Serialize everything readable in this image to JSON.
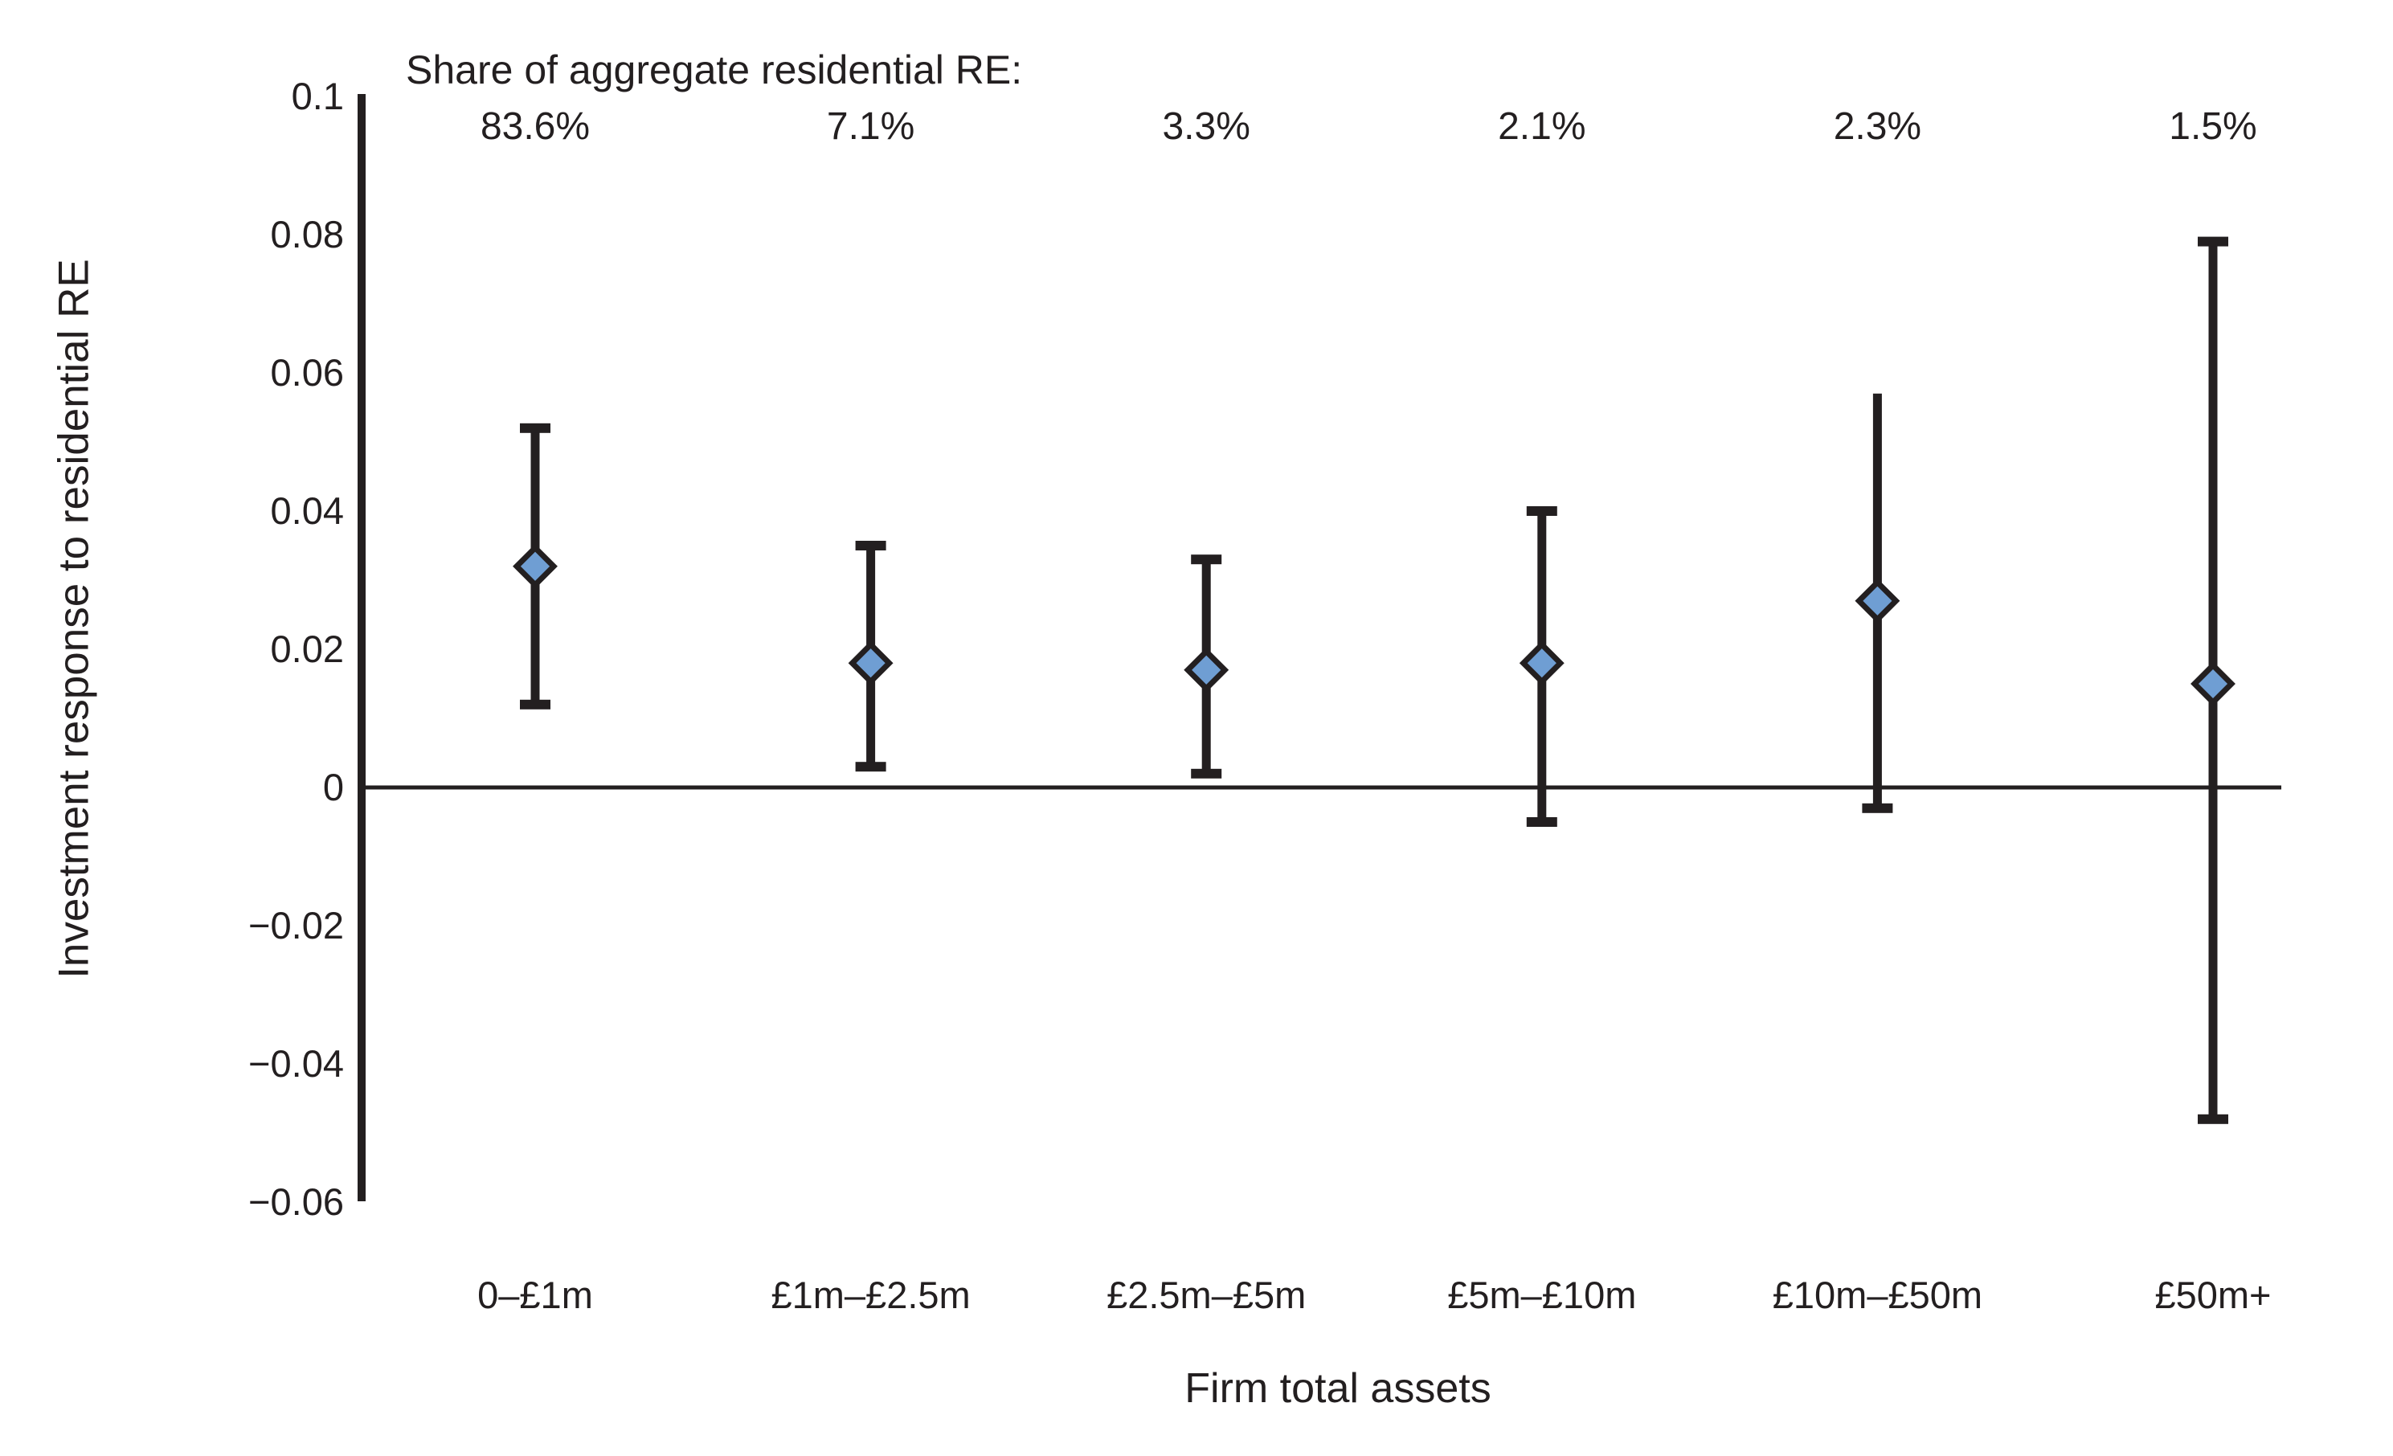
{
  "chart_data": {
    "type": "scatter",
    "subtype": "error-bar coefficient plot",
    "title": "Share of aggregate residential RE:",
    "xlabel": "Firm total assets",
    "ylabel": "Investment response to residential RE",
    "categories": [
      "0–£1m",
      "£1m–£2.5m",
      "£2.5m–£5m",
      "£5m–£10m",
      "£10m–£50m",
      "£50m+"
    ],
    "share_of_aggregate_labels": [
      "83.6%",
      "7.1%",
      "3.3%",
      "2.1%",
      "2.3%",
      "1.5%"
    ],
    "points": [
      {
        "category": "0–£1m",
        "share": "83.6%",
        "value": 0.032,
        "ci_low": 0.012,
        "ci_high": 0.052,
        "top_cap": true
      },
      {
        "category": "£1m–£2.5m",
        "share": "7.1%",
        "value": 0.018,
        "ci_low": 0.003,
        "ci_high": 0.035,
        "top_cap": true
      },
      {
        "category": "£2.5m–£5m",
        "share": "3.3%",
        "value": 0.017,
        "ci_low": 0.002,
        "ci_high": 0.033,
        "top_cap": true
      },
      {
        "category": "£5m–£10m",
        "share": "2.1%",
        "value": 0.018,
        "ci_low": -0.005,
        "ci_high": 0.04,
        "top_cap": true
      },
      {
        "category": "£10m–£50m",
        "share": "2.3%",
        "value": 0.027,
        "ci_low": -0.003,
        "ci_high": 0.057,
        "top_cap": false
      },
      {
        "category": "£50m+",
        "share": "1.5%",
        "value": 0.015,
        "ci_low": -0.048,
        "ci_high": 0.079,
        "top_cap": true
      }
    ],
    "y_ticks": [
      {
        "label": "0.1",
        "value": 0.1
      },
      {
        "label": "0.08",
        "value": 0.08
      },
      {
        "label": "0.06",
        "value": 0.06
      },
      {
        "label": "0.04",
        "value": 0.04
      },
      {
        "label": "0.02",
        "value": 0.02
      },
      {
        "label": "0",
        "value": 0
      },
      {
        "label": "−0.02",
        "value": -0.02
      },
      {
        "label": "−0.04",
        "value": -0.04
      },
      {
        "label": "−0.06",
        "value": -0.06
      }
    ],
    "ylim": [
      -0.06,
      0.1
    ],
    "grid": false,
    "legend": "none",
    "marker": "diamond",
    "zero_reference_line": true,
    "colors": {
      "line": "#231f20",
      "marker_fill": "#6f9ed3",
      "marker_outline": "#231f20",
      "background": "#ffffff"
    }
  }
}
